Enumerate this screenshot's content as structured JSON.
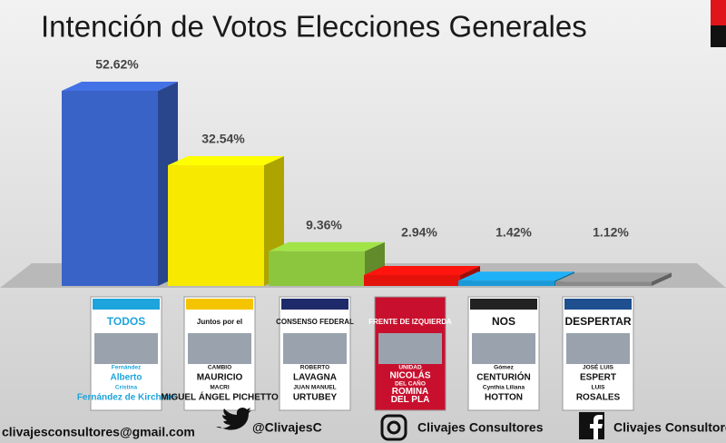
{
  "chart_data": {
    "type": "bar",
    "title": "Intención de Votos Elecciones Generales",
    "categories": [
      null,
      null,
      null,
      null,
      null,
      null
    ],
    "values": [
      52.62,
      32.54,
      9.36,
      2.94,
      1.42,
      1.12
    ],
    "value_labels": [
      "52.62%",
      "32.54%",
      "9.36%",
      "2.94%",
      "1.42%",
      "1.12%"
    ],
    "colors": [
      "#3a63c8",
      "#f7ea00",
      "#8cc63f",
      "#e3120b",
      "#1b9ad8",
      "#8a8a8a"
    ],
    "grid": false
  },
  "ballots": [
    [
      "TODOS",
      "Fernández",
      "Alberto",
      "Cristina",
      "Fernández de Kirchner"
    ],
    [
      "Juntos por el",
      "CAMBIO",
      "MAURICIO",
      "MACRI",
      "MIGUEL ÁNGEL PICHETTO"
    ],
    [
      "CONSENSO FEDERAL",
      "ROBERTO",
      "LAVAGNA",
      "JUAN MANUEL",
      "URTUBEY"
    ],
    [
      "FRENTE DE IZQUIERDA",
      "UNIDAD",
      "NICOLÁS",
      "DEL CAÑO",
      "ROMINA",
      "DEL PLA"
    ],
    [
      "NOS",
      "Gómez",
      "CENTURIÓN",
      "Cynthia Liliana",
      "HOTTON"
    ],
    [
      "DESPERTAR",
      "JOSÉ LUIS",
      "ESPERT",
      "LUIS",
      "ROSALES"
    ]
  ],
  "footer": {
    "email": "clivajesconsultores@gmail.com",
    "twitter": "@ClivajesC",
    "instagram": "Clivajes Consultores",
    "facebook": "Clivajes Consultores"
  }
}
